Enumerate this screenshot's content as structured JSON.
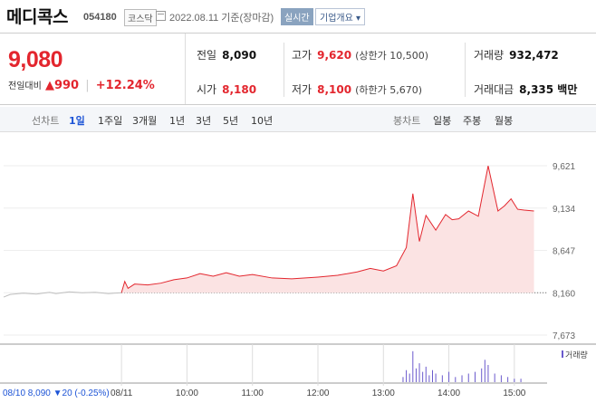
{
  "header": {
    "name": "메디콕스",
    "code": "054180",
    "market": "코스닥",
    "date": "2022.08.11 기준(장마감)",
    "realtime_label": "실시간",
    "info_label": "기업개요 ▾"
  },
  "quote": {
    "price": "9,080",
    "change_label": "전일대비",
    "change": "▲990",
    "change_pct": "+12.24%"
  },
  "stats": {
    "prev_close": {
      "label": "전일",
      "value": "8,090"
    },
    "open": {
      "label": "시가",
      "value": "8,180"
    },
    "high": {
      "label": "고가",
      "value": "9,620",
      "sub": "(상한가 10,500)"
    },
    "low": {
      "label": "저가",
      "value": "8,100",
      "sub": "(하한가 5,670)"
    },
    "volume": {
      "label": "거래량",
      "value": "932,472"
    },
    "amount": {
      "label": "거래대금",
      "value": "8,335 백만"
    }
  },
  "tabs": {
    "line_label": "선차트",
    "line_periods": [
      "1일",
      "1주일",
      "3개월",
      "1년",
      "3년",
      "5년",
      "10년"
    ],
    "active": "1일",
    "candle_label": "봉차트",
    "candle_periods": [
      "일봉",
      "주봉",
      "월봉"
    ]
  },
  "colors": {
    "up": "#e3262e",
    "down": "#1d54d6",
    "area": "#fbe3e3",
    "prev_line": "#bfbfbf"
  },
  "chart_data": {
    "type": "line",
    "y_ticks": [
      "9,621",
      "9,134",
      "8,647",
      "8,160",
      "7,673"
    ],
    "ylim": [
      7673,
      9621
    ],
    "x_ticks": [
      "08/11",
      "10:00",
      "11:00",
      "12:00",
      "13:00",
      "14:00",
      "15:00"
    ],
    "x_ticks_time": [
      9.0,
      10.0,
      11.0,
      12.0,
      13.0,
      14.0,
      15.0
    ],
    "xlim": [
      7.2,
      15.5
    ],
    "baseline": 8160,
    "prev_series": {
      "x": [
        7.2,
        7.3,
        7.5,
        7.7,
        7.9,
        8.0,
        8.2,
        8.4,
        8.6,
        8.8,
        9.0
      ],
      "y": [
        8110,
        8140,
        8155,
        8145,
        8165,
        8150,
        8170,
        8160,
        8165,
        8150,
        8160
      ]
    },
    "series": {
      "x": [
        9.0,
        9.05,
        9.1,
        9.2,
        9.4,
        9.6,
        9.8,
        10.0,
        10.2,
        10.4,
        10.6,
        10.8,
        11.0,
        11.3,
        11.6,
        12.0,
        12.3,
        12.6,
        12.8,
        13.0,
        13.2,
        13.35,
        13.45,
        13.55,
        13.65,
        13.8,
        13.95,
        14.05,
        14.15,
        14.3,
        14.45,
        14.6,
        14.75,
        14.85,
        14.95,
        15.05,
        15.15,
        15.3
      ],
      "y": [
        8160,
        8290,
        8210,
        8260,
        8250,
        8270,
        8310,
        8330,
        8380,
        8350,
        8390,
        8350,
        8370,
        8330,
        8320,
        8340,
        8360,
        8400,
        8440,
        8410,
        8470,
        8680,
        9300,
        8750,
        9050,
        8880,
        9060,
        9000,
        9010,
        9100,
        9040,
        9620,
        9100,
        9160,
        9240,
        9120,
        9110,
        9100
      ]
    },
    "volume_label": "거래량",
    "volume": {
      "x": [
        13.3,
        13.35,
        13.4,
        13.45,
        13.5,
        13.55,
        13.6,
        13.65,
        13.7,
        13.75,
        13.8,
        13.9,
        14.0,
        14.1,
        14.2,
        14.3,
        14.4,
        14.5,
        14.55,
        14.6,
        14.7,
        14.8,
        14.9,
        15.0,
        15.1
      ],
      "v": [
        0.15,
        0.35,
        0.25,
        0.9,
        0.4,
        0.55,
        0.3,
        0.45,
        0.2,
        0.35,
        0.25,
        0.2,
        0.3,
        0.15,
        0.2,
        0.25,
        0.3,
        0.4,
        0.65,
        0.5,
        0.25,
        0.2,
        0.15,
        0.1,
        0.1
      ]
    },
    "footer": "08/10 8,090 ▼20 (-0.25%)"
  }
}
